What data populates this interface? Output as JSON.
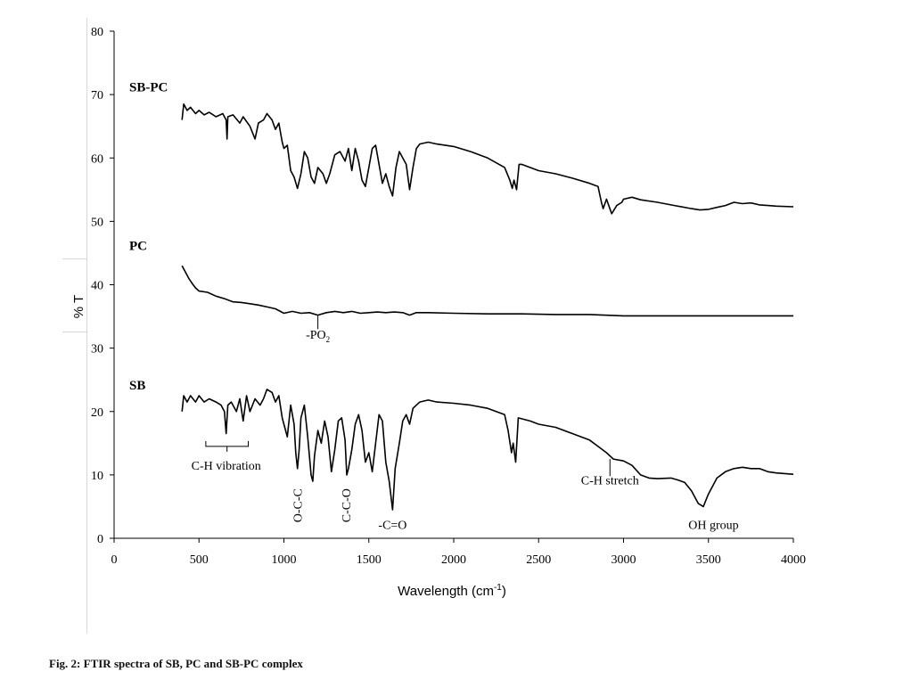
{
  "chart_data": {
    "type": "line",
    "xlabel": "Wavelength (cm",
    "xlabel_sup": "-1",
    "xlabel_close": ")",
    "ylabel": "% T",
    "xlim": [
      0,
      4000
    ],
    "ylim": [
      0,
      80
    ],
    "x_ticks": [
      "0",
      "500",
      "1000",
      "1500",
      "2000",
      "2500",
      "3000",
      "3500",
      "4000"
    ],
    "y_ticks": [
      "0",
      "10",
      "20",
      "30",
      "40",
      "50",
      "60",
      "70",
      "80"
    ],
    "grid": false,
    "series": [
      {
        "name": "SB-PC",
        "points": [
          [
            400,
            66
          ],
          [
            410,
            68.5
          ],
          [
            430,
            67.5
          ],
          [
            450,
            68
          ],
          [
            480,
            67
          ],
          [
            500,
            67.5
          ],
          [
            530,
            66.8
          ],
          [
            560,
            67.2
          ],
          [
            600,
            66.5
          ],
          [
            640,
            67
          ],
          [
            660,
            66
          ],
          [
            665,
            63
          ],
          [
            670,
            66.5
          ],
          [
            700,
            66.8
          ],
          [
            740,
            65.5
          ],
          [
            760,
            66.5
          ],
          [
            800,
            65
          ],
          [
            830,
            63
          ],
          [
            850,
            65.5
          ],
          [
            880,
            66
          ],
          [
            900,
            67
          ],
          [
            930,
            66
          ],
          [
            950,
            64.5
          ],
          [
            970,
            65.5
          ],
          [
            990,
            62.5
          ],
          [
            1000,
            61.5
          ],
          [
            1020,
            62
          ],
          [
            1040,
            58
          ],
          [
            1060,
            57
          ],
          [
            1080,
            55.2
          ],
          [
            1100,
            57.5
          ],
          [
            1120,
            61
          ],
          [
            1140,
            60
          ],
          [
            1160,
            57
          ],
          [
            1180,
            56
          ],
          [
            1200,
            58.5
          ],
          [
            1230,
            57.5
          ],
          [
            1250,
            56
          ],
          [
            1270,
            57.5
          ],
          [
            1300,
            60.5
          ],
          [
            1330,
            61
          ],
          [
            1360,
            59.5
          ],
          [
            1380,
            61.5
          ],
          [
            1400,
            58
          ],
          [
            1420,
            61.5
          ],
          [
            1440,
            59.5
          ],
          [
            1460,
            56.5
          ],
          [
            1480,
            55.5
          ],
          [
            1500,
            58.5
          ],
          [
            1520,
            61.5
          ],
          [
            1540,
            62
          ],
          [
            1560,
            59
          ],
          [
            1580,
            56
          ],
          [
            1600,
            57.5
          ],
          [
            1620,
            55.5
          ],
          [
            1640,
            54
          ],
          [
            1660,
            58.5
          ],
          [
            1680,
            61
          ],
          [
            1700,
            60
          ],
          [
            1720,
            59
          ],
          [
            1740,
            55
          ],
          [
            1760,
            58.5
          ],
          [
            1780,
            61.5
          ],
          [
            1800,
            62.2
          ],
          [
            1850,
            62.5
          ],
          [
            1900,
            62.2
          ],
          [
            2000,
            61.8
          ],
          [
            2100,
            61
          ],
          [
            2200,
            60
          ],
          [
            2300,
            58.5
          ],
          [
            2330,
            56.5
          ],
          [
            2345,
            55.2
          ],
          [
            2355,
            56.5
          ],
          [
            2370,
            55
          ],
          [
            2385,
            59
          ],
          [
            2400,
            59
          ],
          [
            2500,
            58
          ],
          [
            2600,
            57.5
          ],
          [
            2700,
            56.8
          ],
          [
            2800,
            56
          ],
          [
            2850,
            55.5
          ],
          [
            2870,
            53
          ],
          [
            2880,
            52
          ],
          [
            2900,
            53.5
          ],
          [
            2930,
            51.2
          ],
          [
            2960,
            52.5
          ],
          [
            2990,
            53
          ],
          [
            3000,
            53.5
          ],
          [
            3050,
            53.8
          ],
          [
            3100,
            53.4
          ],
          [
            3200,
            53
          ],
          [
            3300,
            52.5
          ],
          [
            3400,
            52
          ],
          [
            3450,
            51.8
          ],
          [
            3500,
            51.9
          ],
          [
            3550,
            52.2
          ],
          [
            3600,
            52.5
          ],
          [
            3650,
            53
          ],
          [
            3700,
            52.8
          ],
          [
            3750,
            52.9
          ],
          [
            3800,
            52.6
          ],
          [
            3850,
            52.5
          ],
          [
            3900,
            52.4
          ],
          [
            4000,
            52.3
          ]
        ]
      },
      {
        "name": "PC",
        "points": [
          [
            400,
            43
          ],
          [
            420,
            42
          ],
          [
            440,
            41
          ],
          [
            460,
            40.2
          ],
          [
            480,
            39.5
          ],
          [
            500,
            39
          ],
          [
            550,
            38.8
          ],
          [
            600,
            38.2
          ],
          [
            650,
            37.8
          ],
          [
            700,
            37.3
          ],
          [
            750,
            37.2
          ],
          [
            800,
            37
          ],
          [
            850,
            36.8
          ],
          [
            900,
            36.5
          ],
          [
            950,
            36.2
          ],
          [
            1000,
            35.5
          ],
          [
            1050,
            35.8
          ],
          [
            1100,
            35.5
          ],
          [
            1150,
            35.6
          ],
          [
            1200,
            35.2
          ],
          [
            1250,
            35.6
          ],
          [
            1300,
            35.8
          ],
          [
            1350,
            35.6
          ],
          [
            1400,
            35.8
          ],
          [
            1450,
            35.5
          ],
          [
            1500,
            35.6
          ],
          [
            1550,
            35.7
          ],
          [
            1600,
            35.6
          ],
          [
            1650,
            35.7
          ],
          [
            1700,
            35.6
          ],
          [
            1740,
            35.2
          ],
          [
            1780,
            35.6
          ],
          [
            1850,
            35.6
          ],
          [
            2000,
            35.5
          ],
          [
            2200,
            35.4
          ],
          [
            2400,
            35.4
          ],
          [
            2600,
            35.3
          ],
          [
            2800,
            35.3
          ],
          [
            3000,
            35.1
          ],
          [
            3200,
            35.1
          ],
          [
            3400,
            35.1
          ],
          [
            3600,
            35.1
          ],
          [
            3800,
            35.1
          ],
          [
            4000,
            35.1
          ]
        ]
      },
      {
        "name": "SB",
        "points": [
          [
            400,
            20
          ],
          [
            410,
            22.5
          ],
          [
            430,
            21.5
          ],
          [
            450,
            22.5
          ],
          [
            480,
            21.5
          ],
          [
            500,
            22.5
          ],
          [
            530,
            21.5
          ],
          [
            560,
            22
          ],
          [
            600,
            21.5
          ],
          [
            630,
            21
          ],
          [
            650,
            20
          ],
          [
            660,
            16.5
          ],
          [
            670,
            21
          ],
          [
            690,
            21.5
          ],
          [
            720,
            20
          ],
          [
            740,
            22
          ],
          [
            760,
            18.5
          ],
          [
            780,
            22.5
          ],
          [
            800,
            20
          ],
          [
            830,
            22
          ],
          [
            860,
            21
          ],
          [
            880,
            22
          ],
          [
            900,
            23.5
          ],
          [
            930,
            23
          ],
          [
            950,
            21.5
          ],
          [
            970,
            22.5
          ],
          [
            990,
            19
          ],
          [
            1000,
            18
          ],
          [
            1020,
            16
          ],
          [
            1040,
            21
          ],
          [
            1060,
            18
          ],
          [
            1070,
            13.5
          ],
          [
            1080,
            11
          ],
          [
            1090,
            14
          ],
          [
            1100,
            19
          ],
          [
            1120,
            21
          ],
          [
            1140,
            16
          ],
          [
            1160,
            10
          ],
          [
            1170,
            9
          ],
          [
            1180,
            13
          ],
          [
            1200,
            17
          ],
          [
            1220,
            15
          ],
          [
            1240,
            18.5
          ],
          [
            1260,
            16
          ],
          [
            1280,
            10.5
          ],
          [
            1300,
            14
          ],
          [
            1320,
            18.5
          ],
          [
            1340,
            19
          ],
          [
            1360,
            15.5
          ],
          [
            1370,
            10
          ],
          [
            1380,
            11
          ],
          [
            1400,
            14
          ],
          [
            1420,
            18
          ],
          [
            1440,
            19.5
          ],
          [
            1460,
            17
          ],
          [
            1480,
            12
          ],
          [
            1500,
            13.5
          ],
          [
            1520,
            10.5
          ],
          [
            1540,
            15
          ],
          [
            1560,
            19.5
          ],
          [
            1580,
            18.5
          ],
          [
            1600,
            12
          ],
          [
            1620,
            9
          ],
          [
            1640,
            4.5
          ],
          [
            1655,
            11
          ],
          [
            1680,
            15
          ],
          [
            1700,
            18.5
          ],
          [
            1720,
            19.5
          ],
          [
            1740,
            18
          ],
          [
            1760,
            20.5
          ],
          [
            1800,
            21.5
          ],
          [
            1850,
            21.8
          ],
          [
            1900,
            21.5
          ],
          [
            2000,
            21.3
          ],
          [
            2100,
            21
          ],
          [
            2200,
            20.5
          ],
          [
            2300,
            19.5
          ],
          [
            2320,
            17
          ],
          [
            2340,
            13.5
          ],
          [
            2350,
            15
          ],
          [
            2365,
            12
          ],
          [
            2380,
            19
          ],
          [
            2450,
            18.5
          ],
          [
            2500,
            18
          ],
          [
            2600,
            17.5
          ],
          [
            2700,
            16.5
          ],
          [
            2800,
            15.5
          ],
          [
            2850,
            14.5
          ],
          [
            2900,
            13.5
          ],
          [
            2940,
            12.5
          ],
          [
            3000,
            12.2
          ],
          [
            3050,
            11.5
          ],
          [
            3100,
            10
          ],
          [
            3150,
            9.5
          ],
          [
            3200,
            9.4
          ],
          [
            3280,
            9.5
          ],
          [
            3320,
            9.2
          ],
          [
            3360,
            8.8
          ],
          [
            3400,
            7.5
          ],
          [
            3440,
            5.5
          ],
          [
            3470,
            5
          ],
          [
            3500,
            7
          ],
          [
            3550,
            9.5
          ],
          [
            3600,
            10.5
          ],
          [
            3650,
            11
          ],
          [
            3700,
            11.2
          ],
          [
            3750,
            11
          ],
          [
            3800,
            11
          ],
          [
            3850,
            10.5
          ],
          [
            3900,
            10.3
          ],
          [
            4000,
            10.1
          ]
        ]
      }
    ],
    "series_labels": [
      {
        "text": "SB-PC",
        "y": 70.5
      },
      {
        "text": "PC",
        "y": 45.5
      },
      {
        "text": "SB",
        "y": 23.5
      }
    ],
    "annotations": [
      {
        "text": "C-H vibration",
        "x": 660,
        "y": 10.8,
        "bracket": [
          540,
          790
        ],
        "bracket_y": 14.5
      },
      {
        "text": "O-C-C",
        "x": 1080,
        "y": 2.5,
        "vertical": true
      },
      {
        "text": "C-C-O",
        "x": 1365,
        "y": 2.5,
        "vertical": true
      },
      {
        "text": "-C=O",
        "x": 1640,
        "y": 1.5
      },
      {
        "text": "C-H stretch",
        "x": 2920,
        "y": 8.5,
        "tick_from": 12.5,
        "tick_to": 9.8
      },
      {
        "text": "OH group",
        "x": 3530,
        "y": 1.5
      },
      {
        "text": "-PO",
        "sub": "2",
        "x": 1200,
        "y": 31.5,
        "tick_from": 35.2,
        "tick_to": 33
      }
    ]
  },
  "caption": "Fig. 2: FTIR spectra of SB, PC and SB-PC complex"
}
